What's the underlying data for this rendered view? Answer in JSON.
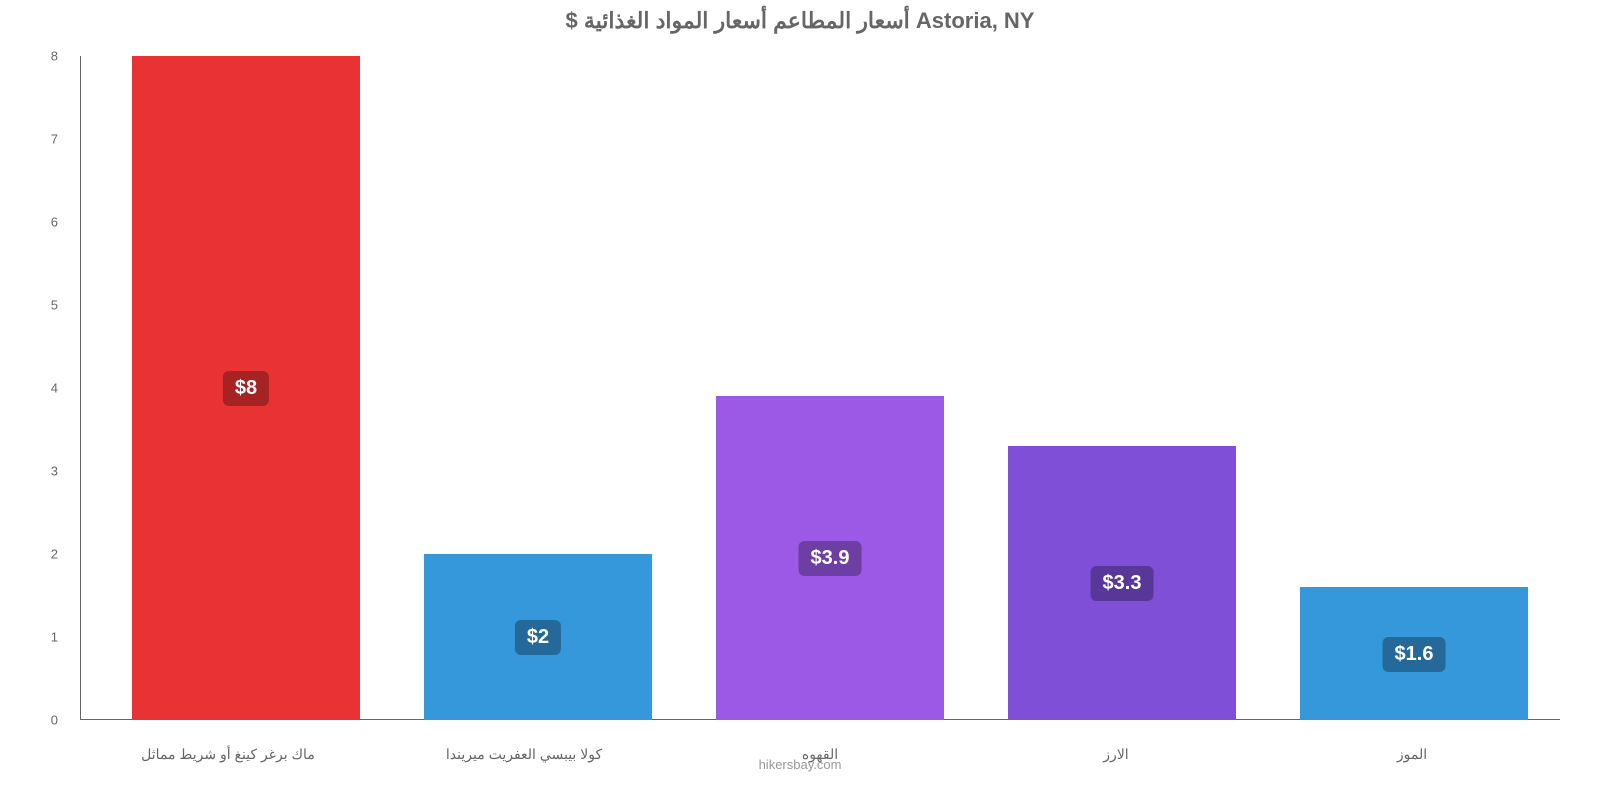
{
  "chart": {
    "type": "bar",
    "title": "Astoria, NY أسعار المطاعم أسعار المواد الغذائية $",
    "title_color": "#666666",
    "title_fontsize": 22,
    "background_color": "#ffffff",
    "attribution": "hikersbay.com",
    "attribution_color": "#999999",
    "ylim": [
      0,
      8
    ],
    "ytick_step": 1,
    "axis_color": "#666666",
    "bar_width_ratio": 0.78,
    "bars": [
      {
        "category": "ماك برغر كينغ أو شريط مماثل",
        "value": 8.0,
        "display_value": "$8",
        "bar_color": "#e93233",
        "label_bg": "#a62324"
      },
      {
        "category": "كولا بيبسي العفريت ميريندا",
        "value": 2.0,
        "display_value": "$2",
        "bar_color": "#3498db",
        "label_bg": "#25699a"
      },
      {
        "category": "القهوه",
        "value": 3.9,
        "display_value": "$3.9",
        "bar_color": "#9b59e6",
        "label_bg": "#6d3fa3"
      },
      {
        "category": "الارز",
        "value": 3.3,
        "display_value": "$3.3",
        "bar_color": "#7f4fd8",
        "label_bg": "#593798"
      },
      {
        "category": "الموز",
        "value": 1.6,
        "display_value": "$1.6",
        "bar_color": "#3498db",
        "label_bg": "#25699a"
      }
    ],
    "label_text_color": "#ffffff",
    "label_fontsize": 20,
    "xlabel_fontsize": 14,
    "xlabel_color": "#666666",
    "ylabel_fontsize": 13,
    "ylabel_color": "#666666"
  }
}
